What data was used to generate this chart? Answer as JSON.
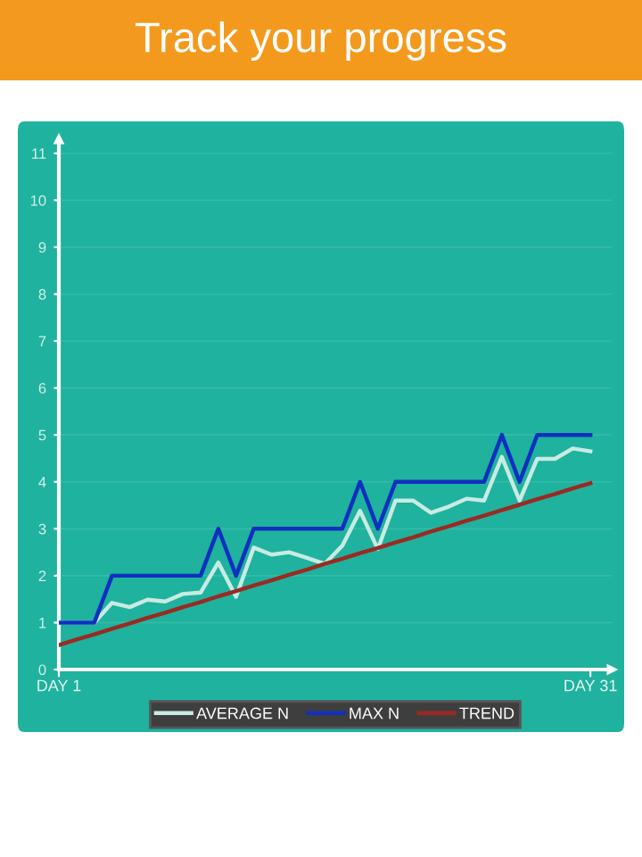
{
  "chart_data": {
    "type": "line",
    "title": "Track your progress",
    "categories": [
      "DAY 1",
      null,
      null,
      null,
      null,
      null,
      null,
      null,
      null,
      null,
      null,
      null,
      null,
      null,
      null,
      null,
      null,
      null,
      null,
      null,
      null,
      null,
      null,
      null,
      null,
      null,
      null,
      null,
      null,
      null,
      "DAY 31"
    ],
    "series": [
      {
        "name": "AVERAGE N",
        "color": "#c8ebe4",
        "values": [
          1,
          1,
          1,
          1.42,
          1.33,
          1.49,
          1.45,
          1.61,
          1.64,
          2.28,
          1.55,
          2.6,
          2.45,
          2.5,
          2.38,
          2.25,
          2.64,
          3.38,
          2.57,
          3.6,
          3.6,
          3.34,
          3.47,
          3.64,
          3.6,
          4.53,
          3.6,
          4.49,
          4.49,
          4.71,
          4.65
        ]
      },
      {
        "name": "MAX N",
        "color": "#1030c0",
        "values": [
          1,
          1,
          1,
          2,
          2,
          2,
          2,
          2,
          2,
          3,
          2,
          3,
          3,
          3,
          3,
          3,
          3,
          4,
          3,
          4,
          4,
          4,
          4,
          4,
          4,
          5,
          4,
          5,
          5,
          5,
          5
        ]
      },
      {
        "name": "TREND",
        "color": "#9a2a22",
        "values": [
          0.52,
          0.64,
          0.75,
          0.87,
          0.98,
          1.1,
          1.21,
          1.33,
          1.44,
          1.56,
          1.67,
          1.79,
          1.9,
          2.02,
          2.13,
          2.25,
          2.36,
          2.48,
          2.59,
          2.71,
          2.82,
          2.94,
          3.05,
          3.17,
          3.28,
          3.4,
          3.51,
          3.63,
          3.74,
          3.86,
          3.97
        ]
      }
    ],
    "ylim": [
      0,
      11.3
    ],
    "yticks": [
      0,
      1,
      2,
      3,
      4,
      5,
      6,
      7,
      8,
      9,
      10,
      11
    ],
    "grid": "y",
    "legend": "bottom",
    "marker": "none",
    "line_style": "solid"
  }
}
